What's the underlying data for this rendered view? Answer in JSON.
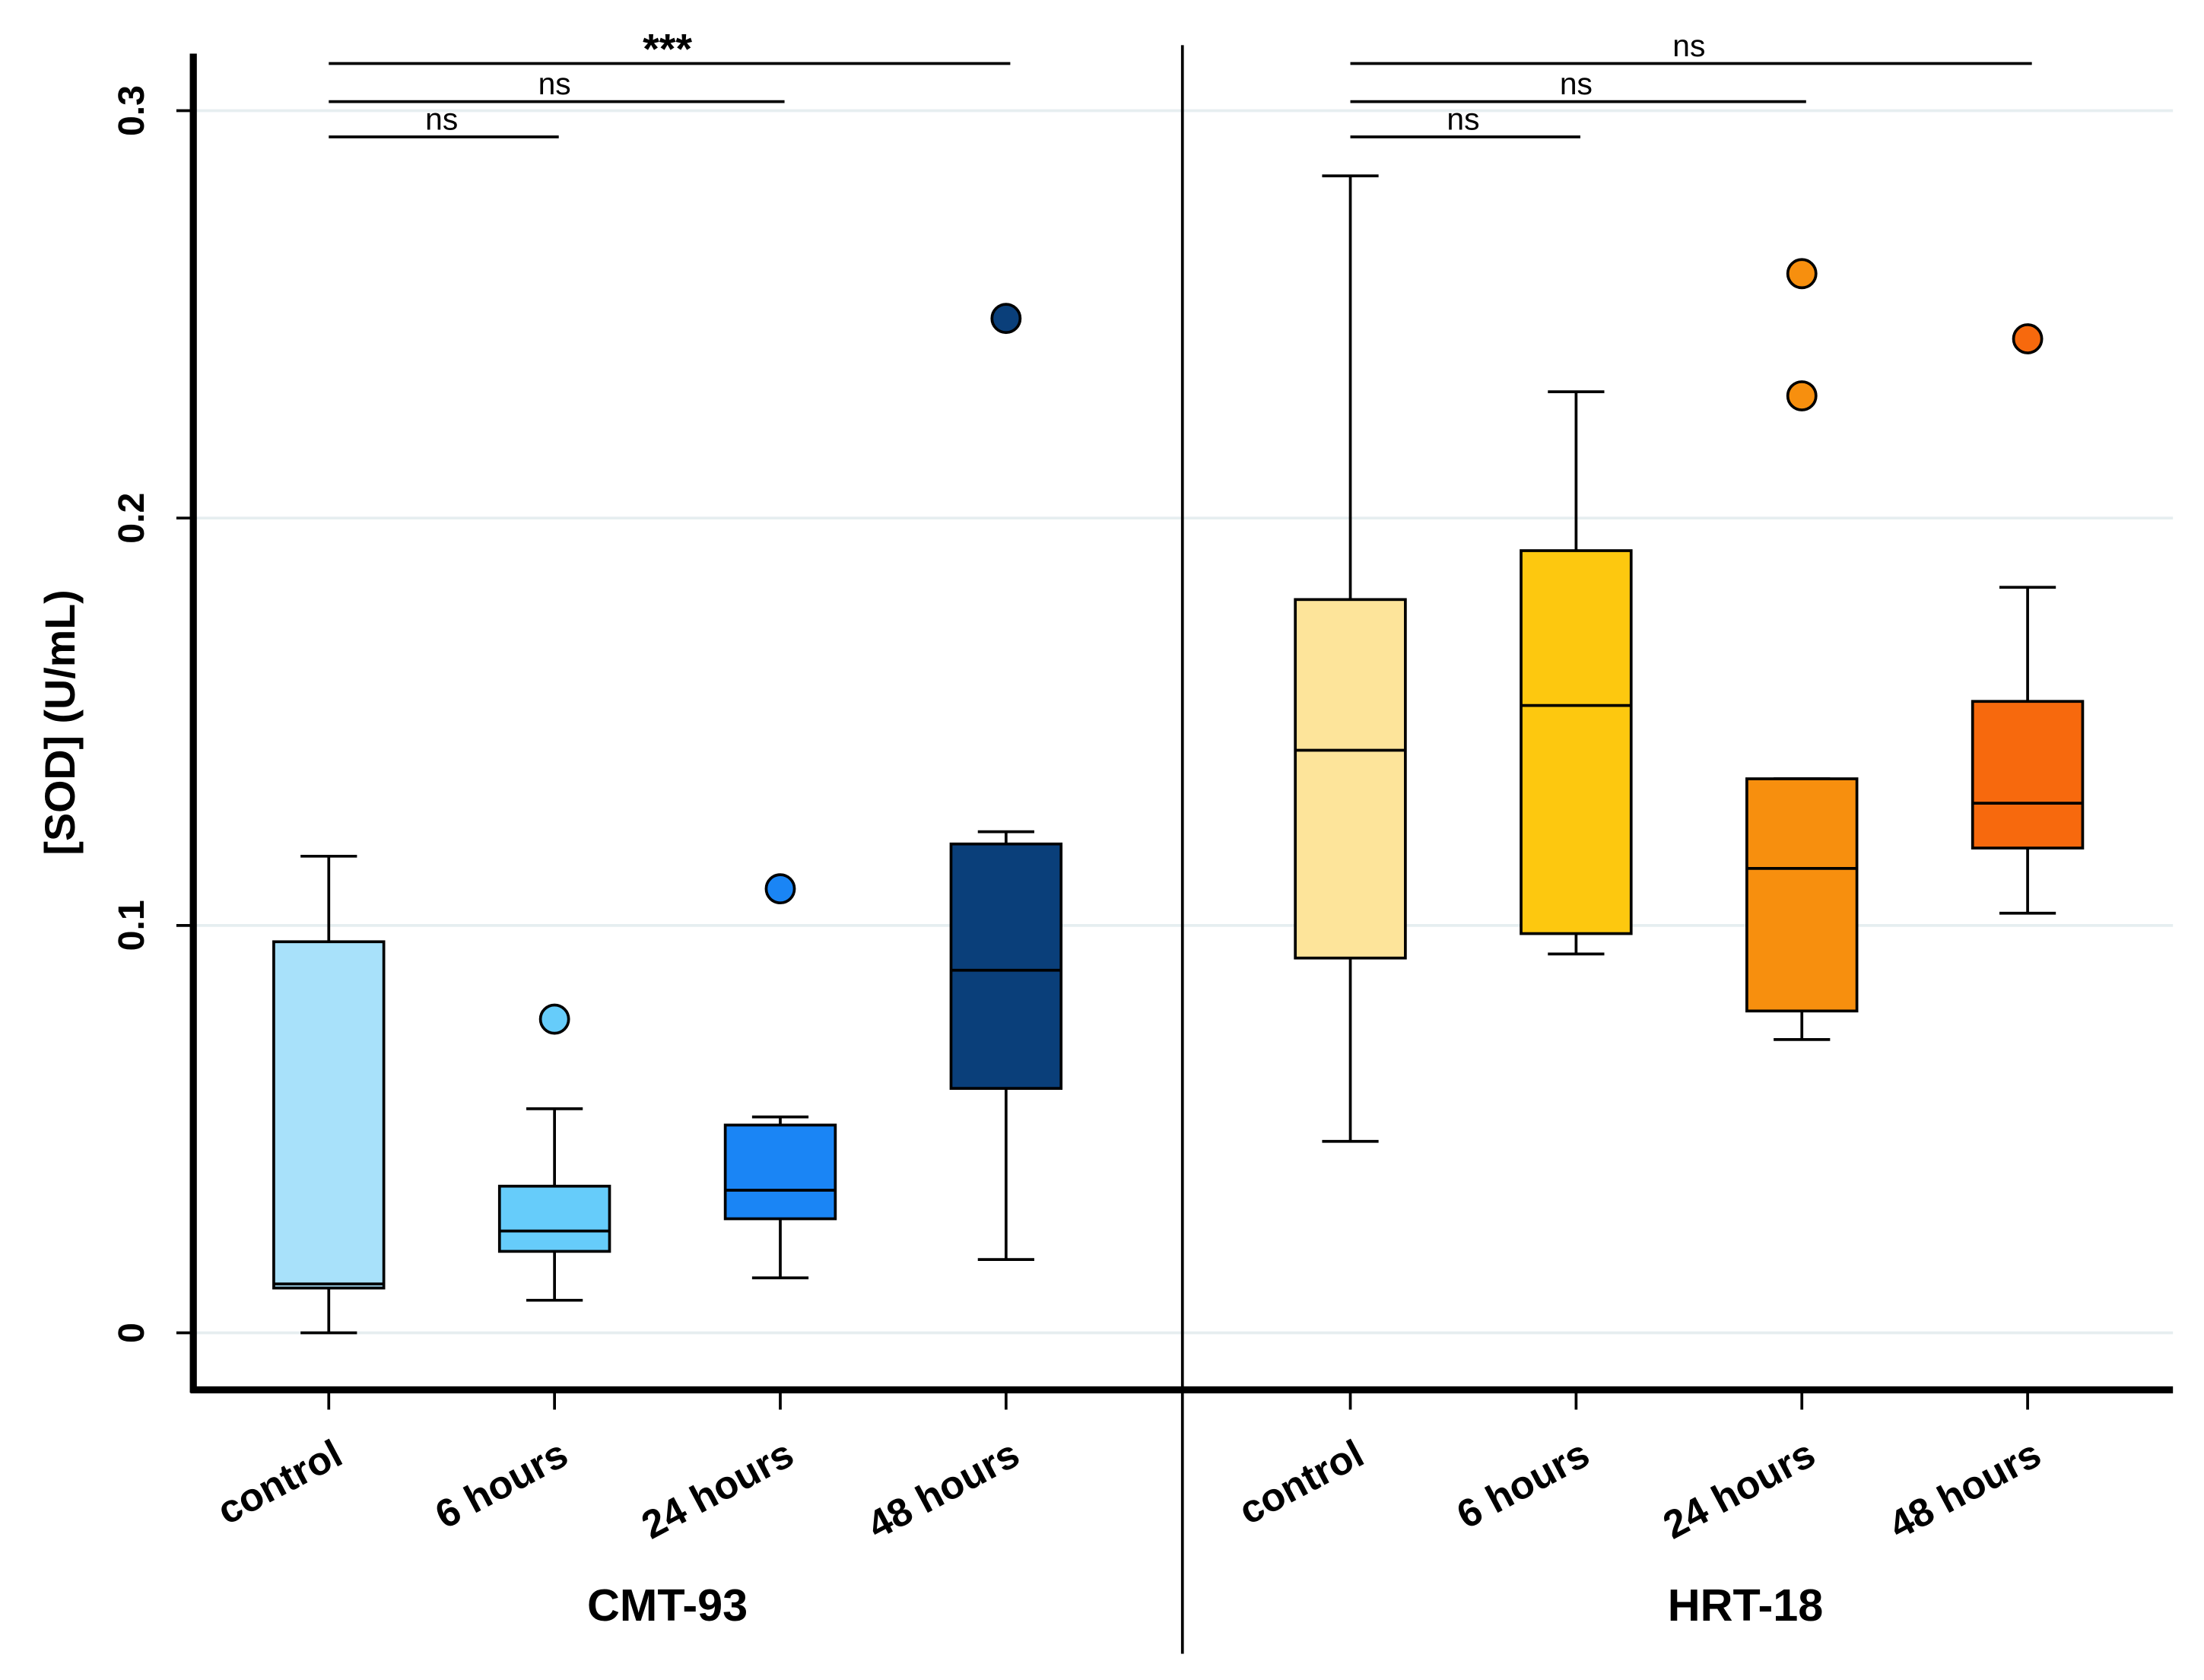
{
  "chart_data": {
    "type": "box",
    "ylabel": "[SOD] (U/mL)",
    "ylim": [
      -0.014,
      0.314
    ],
    "yticks": [
      0,
      0.1,
      0.2,
      0.3
    ],
    "grid": true,
    "groups": [
      {
        "name": "CMT-93",
        "categories": [
          "control",
          "6 hours",
          "24 hours",
          "48 hours"
        ],
        "boxes": [
          {
            "color": "#a8e1fa",
            "min": 0,
            "q1": 0.011,
            "median": 0.012,
            "q3": 0.096,
            "max": 0.117,
            "outliers": []
          },
          {
            "color": "#66ccfa",
            "min": 0.008,
            "q1": 0.02,
            "median": 0.025,
            "q3": 0.036,
            "max": 0.055,
            "outliers": [
              0.077
            ]
          },
          {
            "color": "#1a85f5",
            "min": 0.0135,
            "q1": 0.028,
            "median": 0.035,
            "q3": 0.051,
            "max": 0.053,
            "outliers": [
              0.109
            ]
          },
          {
            "color": "#0a3f7a",
            "min": 0.018,
            "q1": 0.06,
            "median": 0.089,
            "q3": 0.12,
            "max": 0.123,
            "outliers": [
              0.249
            ]
          }
        ],
        "comparisons": [
          {
            "from": 0,
            "to": 1,
            "label": "ns"
          },
          {
            "from": 0,
            "to": 2,
            "label": "ns"
          },
          {
            "from": 0,
            "to": 3,
            "label": "***"
          }
        ]
      },
      {
        "name": "HRT-18",
        "categories": [
          "control",
          "6 hours",
          "24 hours",
          "48 hours"
        ],
        "boxes": [
          {
            "color": "#fde49a",
            "min": 0.047,
            "q1": 0.092,
            "median": 0.143,
            "q3": 0.18,
            "max": 0.284,
            "outliers": []
          },
          {
            "color": "#fdc80f",
            "min": 0.093,
            "q1": 0.098,
            "median": 0.154,
            "q3": 0.192,
            "max": 0.231,
            "outliers": []
          },
          {
            "color": "#f78f0e",
            "min": 0.072,
            "q1": 0.079,
            "median": 0.114,
            "q3": 0.136,
            "max": 0.136,
            "outliers": [
              0.23,
              0.26
            ]
          },
          {
            "color": "#f7690d",
            "min": 0.103,
            "q1": 0.119,
            "median": 0.13,
            "q3": 0.155,
            "max": 0.183,
            "outliers": [
              0.244
            ]
          }
        ],
        "comparisons": [
          {
            "from": 0,
            "to": 1,
            "label": "ns"
          },
          {
            "from": 0,
            "to": 2,
            "label": "ns"
          },
          {
            "from": 0,
            "to": 3,
            "label": "ns"
          }
        ]
      }
    ]
  }
}
